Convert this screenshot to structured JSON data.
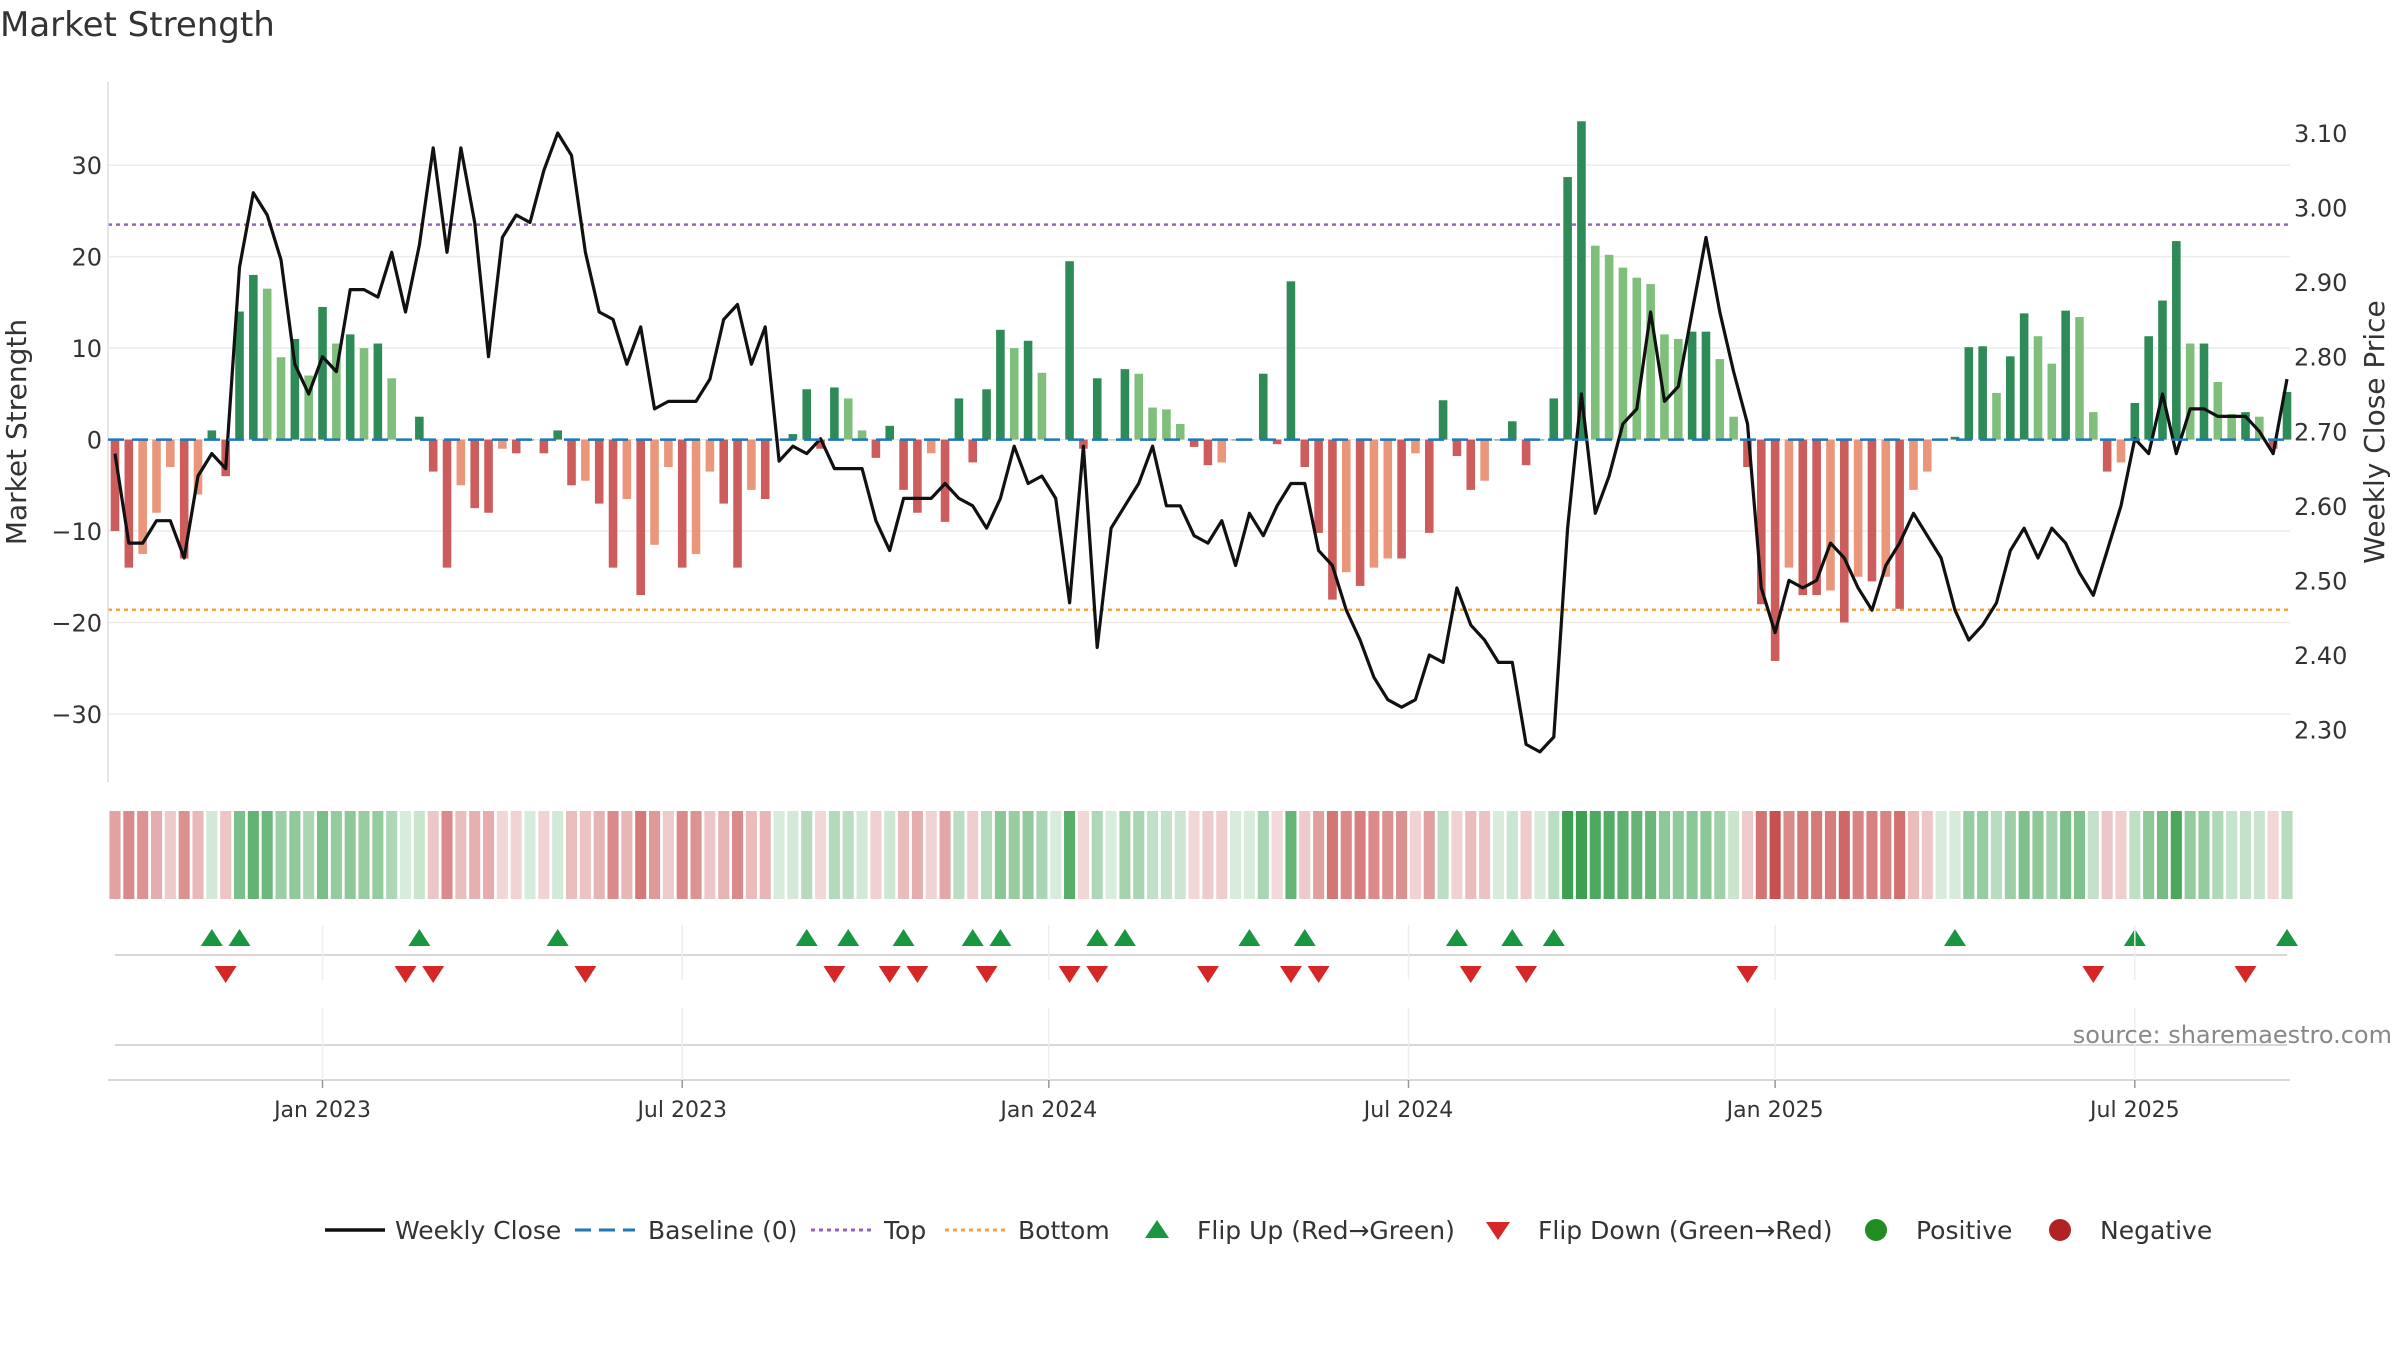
{
  "chart_data": {
    "type": "bar",
    "title": "Market Strength",
    "ylabel": "Market Strength",
    "y2label": "Weekly Close Price",
    "ylim": [
      -37,
      38
    ],
    "y2lim": [
      2.235,
      3.155
    ],
    "yticks": [
      30,
      20,
      10,
      0,
      -10,
      -20,
      -30
    ],
    "ytick_labels": [
      "30",
      "20",
      "10",
      "0",
      "−10",
      "−20",
      "−30"
    ],
    "y2ticks": [
      3.1,
      3.0,
      2.9,
      2.8,
      2.7,
      2.6,
      2.5,
      2.4,
      2.3
    ],
    "y2tick_labels": [
      "3.10",
      "3.00",
      "2.90",
      "2.80",
      "2.70",
      "2.60",
      "2.50",
      "2.40",
      "2.30"
    ],
    "xticks": [
      {
        "label": "Jan 2023",
        "week": 15
      },
      {
        "label": "Jul 2023",
        "week": 41
      },
      {
        "label": "Jan 2024",
        "week": 67.5
      },
      {
        "label": "Jul 2024",
        "week": 93.5
      },
      {
        "label": "Jan 2025",
        "week": 120
      },
      {
        "label": "Jul 2025",
        "week": 146
      }
    ],
    "top_line": 23.5,
    "bottom_line": -18.6,
    "baseline": 0,
    "week_count": 158,
    "strength": [
      -10,
      -14,
      -12.5,
      -8,
      -3,
      -13,
      -6,
      1,
      -4,
      14,
      18,
      16.5,
      9,
      11,
      7,
      14.5,
      10.5,
      11.5,
      10,
      10.5,
      6.7,
      0,
      2.5,
      -3.5,
      -14,
      -5,
      -7.5,
      -8,
      -1,
      -1.5,
      0,
      -1.5,
      1,
      -5,
      -4.5,
      -7,
      -14,
      -6.5,
      -17,
      -11.5,
      -3,
      -14,
      -12.5,
      -3.5,
      -7,
      -14,
      -5.5,
      -6.5,
      0,
      0.6,
      5.5,
      -1,
      5.7,
      4.5,
      1,
      -2,
      1.5,
      -5.5,
      -8,
      -1.5,
      -9,
      4.5,
      -2.5,
      5.5,
      12,
      10,
      10.8,
      7.3,
      0,
      19.5,
      -1,
      6.7,
      0,
      7.7,
      7.2,
      3.5,
      3.3,
      1.7,
      -0.8,
      -2.8,
      -2.5,
      0,
      0,
      7.2,
      -0.5,
      17.3,
      -3,
      -10.2,
      -17.5,
      -14.5,
      -16,
      -14,
      -13,
      -13,
      -1.5,
      -10.2,
      4.3,
      -1.8,
      -5.5,
      -4.5,
      0,
      2,
      -2.8,
      0,
      4.5,
      28.7,
      34.8,
      21.2,
      20.2,
      18.8,
      17.7,
      17,
      11.5,
      11,
      11.8,
      11.8,
      8.8,
      2.5,
      -3,
      -18,
      -24.2,
      -14,
      -17,
      -17,
      -16.5,
      -20,
      -15,
      -15.5,
      -15,
      -18.5,
      -5.5,
      -3.5,
      0,
      0.3,
      10.1,
      10.2,
      5.1,
      9.1,
      13.8,
      11.3,
      8.3,
      14.1,
      13.4,
      3,
      -3.5,
      -2.5,
      4,
      11.3,
      15.2,
      21.7,
      10.5,
      10.5,
      6.3,
      2.8,
      3,
      2.5,
      -1,
      5.2
    ],
    "weekly_close": [
      2.67,
      2.55,
      2.55,
      2.58,
      2.58,
      2.53,
      2.64,
      2.67,
      2.65,
      2.92,
      3.02,
      2.99,
      2.93,
      2.79,
      2.75,
      2.8,
      2.78,
      2.89,
      2.89,
      2.88,
      2.94,
      2.86,
      2.95,
      3.08,
      2.94,
      3.08,
      2.98,
      2.8,
      2.96,
      2.99,
      2.98,
      3.05,
      3.1,
      3.07,
      2.94,
      2.86,
      2.85,
      2.79,
      2.84,
      2.73,
      2.74,
      2.74,
      2.74,
      2.77,
      2.85,
      2.87,
      2.79,
      2.84,
      2.66,
      2.68,
      2.67,
      2.69,
      2.65,
      2.65,
      2.65,
      2.58,
      2.54,
      2.61,
      2.61,
      2.61,
      2.63,
      2.61,
      2.6,
      2.57,
      2.61,
      2.68,
      2.63,
      2.64,
      2.61,
      2.47,
      2.68,
      2.41,
      2.57,
      2.6,
      2.63,
      2.68,
      2.6,
      2.6,
      2.56,
      2.55,
      2.58,
      2.52,
      2.59,
      2.56,
      2.6,
      2.63,
      2.63,
      2.54,
      2.52,
      2.46,
      2.42,
      2.37,
      2.34,
      2.33,
      2.34,
      2.4,
      2.39,
      2.49,
      2.44,
      2.42,
      2.39,
      2.39,
      2.28,
      2.27,
      2.29,
      2.57,
      2.75,
      2.59,
      2.64,
      2.71,
      2.73,
      2.86,
      2.74,
      2.76,
      2.86,
      2.96,
      2.86,
      2.78,
      2.71,
      2.49,
      2.43,
      2.5,
      2.49,
      2.5,
      2.55,
      2.53,
      2.49,
      2.46,
      2.52,
      2.55,
      2.59,
      2.56,
      2.53,
      2.46,
      2.42,
      2.44,
      2.47,
      2.54,
      2.57,
      2.53,
      2.57,
      2.55,
      2.51,
      2.48,
      2.54,
      2.6,
      2.69,
      2.67,
      2.75,
      2.67,
      2.73,
      2.73,
      2.72,
      2.72,
      2.72,
      2.7,
      2.67,
      2.77
    ],
    "flip_up_weeks": [
      7,
      9,
      22,
      32,
      50,
      53,
      57,
      62,
      64,
      71,
      73,
      82,
      86,
      97,
      101,
      104,
      133,
      146,
      157
    ],
    "flip_down_weeks": [
      8,
      21,
      23,
      34,
      52,
      56,
      58,
      63,
      69,
      71,
      79,
      85,
      87,
      98,
      102,
      118,
      143,
      154
    ],
    "legend": [
      "Weekly Close",
      "Baseline (0)",
      "Top",
      "Bottom",
      "Flip Up (Red→Green)",
      "Flip Down (Green→Red)",
      "Positive",
      "Negative"
    ],
    "legend_position": "bottom-center",
    "annotation": "source: sharemaestro.com",
    "colors": {
      "bar_strong_pos": "#2e8b57",
      "bar_weak_pos": "#7fbf7b",
      "bar_strong_neg": "#cd5c5c",
      "bar_weak_neg": "#e9967a",
      "close_line": "#111111",
      "baseline": "#1f77b4",
      "top_line": "#9467bd",
      "bottom_line": "#f4a340",
      "flip_up": "#1a9641",
      "flip_down": "#d62728",
      "positive": "#228b22",
      "negative": "#b22222",
      "grid": "#ececec",
      "axis_text": "#333333",
      "annotation": "#888888"
    }
  }
}
